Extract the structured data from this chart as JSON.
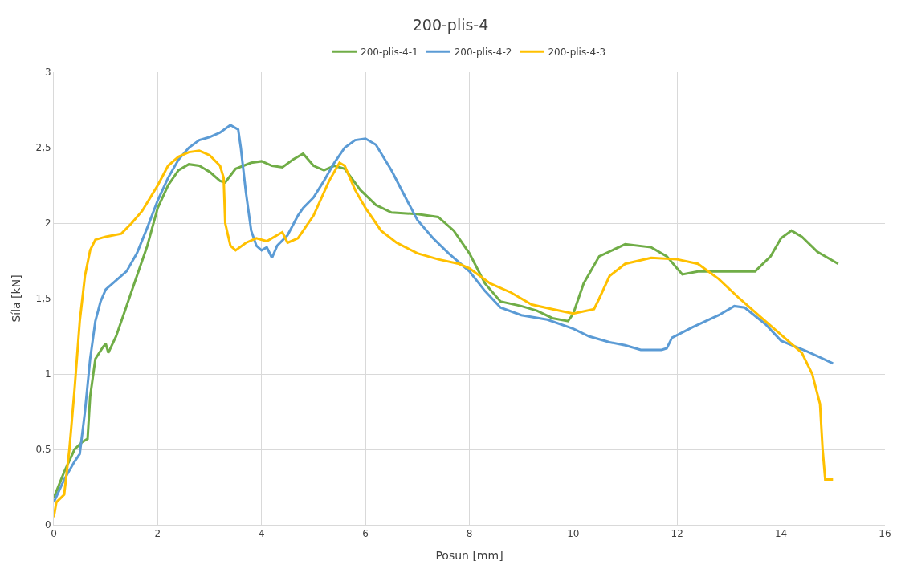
{
  "chart_data": {
    "type": "line",
    "title": "200-plis-4",
    "xlabel": "Posun [mm]",
    "ylabel": "Síla [kN]",
    "xlim": [
      0,
      16
    ],
    "xticks": [
      0,
      2,
      4,
      6,
      8,
      10,
      12,
      14,
      16
    ],
    "ylim": [
      0,
      3
    ],
    "yticks": [
      0,
      {
        "value": 0.5,
        "label": "0,5"
      },
      1,
      {
        "value": 1.5,
        "label": "1,5"
      },
      2,
      {
        "value": 2.5,
        "label": "2,5"
      },
      3
    ],
    "grid": true,
    "legend": "top",
    "marker": "none",
    "line_style": "solid",
    "series": [
      {
        "name": "200-plis-4-1",
        "color": "#70ad47",
        "x": [
          0,
          0.2,
          0.4,
          0.55,
          0.65,
          0.7,
          0.8,
          0.95,
          1.0,
          1.05,
          1.2,
          1.4,
          1.6,
          1.8,
          2.0,
          2.2,
          2.4,
          2.6,
          2.8,
          3.0,
          3.2,
          3.3,
          3.5,
          3.8,
          4.0,
          4.2,
          4.4,
          4.6,
          4.8,
          5.0,
          5.2,
          5.4,
          5.6,
          5.9,
          6.2,
          6.5,
          7.0,
          7.4,
          7.7,
          8.0,
          8.3,
          8.6,
          9.0,
          9.3,
          9.6,
          9.9,
          10.0,
          10.2,
          10.5,
          11.0,
          11.5,
          11.8,
          12.0,
          12.1,
          12.4,
          13.0,
          13.5,
          13.8,
          14.0,
          14.2,
          14.4,
          14.7,
          15.1
        ],
        "values": [
          0.18,
          0.35,
          0.5,
          0.55,
          0.57,
          0.85,
          1.1,
          1.18,
          1.2,
          1.14,
          1.25,
          1.45,
          1.65,
          1.85,
          2.1,
          2.25,
          2.35,
          2.39,
          2.38,
          2.34,
          2.28,
          2.27,
          2.36,
          2.4,
          2.41,
          2.38,
          2.37,
          2.42,
          2.46,
          2.38,
          2.35,
          2.38,
          2.36,
          2.22,
          2.12,
          2.07,
          2.06,
          2.04,
          1.95,
          1.8,
          1.6,
          1.48,
          1.45,
          1.42,
          1.37,
          1.35,
          1.4,
          1.6,
          1.78,
          1.86,
          1.84,
          1.78,
          1.7,
          1.66,
          1.68,
          1.68,
          1.68,
          1.78,
          1.9,
          1.95,
          1.91,
          1.81,
          1.73
        ]
      },
      {
        "name": "200-plis-4-2",
        "color": "#5b9bd5",
        "x": [
          0,
          0.2,
          0.4,
          0.5,
          0.6,
          0.7,
          0.8,
          0.9,
          1.0,
          1.2,
          1.4,
          1.6,
          1.8,
          2.0,
          2.2,
          2.4,
          2.6,
          2.8,
          3.0,
          3.2,
          3.4,
          3.55,
          3.6,
          3.7,
          3.8,
          3.9,
          4.0,
          4.1,
          4.2,
          4.3,
          4.5,
          4.7,
          4.8,
          5.0,
          5.2,
          5.4,
          5.6,
          5.8,
          6.0,
          6.2,
          6.5,
          6.8,
          7.0,
          7.3,
          7.6,
          8.0,
          8.3,
          8.6,
          9.0,
          9.5,
          10.0,
          10.3,
          10.7,
          11.0,
          11.3,
          11.7,
          11.8,
          11.9,
          12.3,
          12.8,
          13.1,
          13.3,
          13.7,
          14.0,
          14.5,
          15.0
        ],
        "values": [
          0.15,
          0.3,
          0.42,
          0.47,
          0.75,
          1.1,
          1.35,
          1.48,
          1.56,
          1.62,
          1.68,
          1.8,
          1.97,
          2.15,
          2.3,
          2.42,
          2.5,
          2.55,
          2.57,
          2.6,
          2.65,
          2.62,
          2.5,
          2.2,
          1.95,
          1.85,
          1.82,
          1.84,
          1.77,
          1.85,
          1.92,
          2.05,
          2.1,
          2.17,
          2.28,
          2.4,
          2.5,
          2.55,
          2.56,
          2.52,
          2.35,
          2.15,
          2.02,
          1.9,
          1.8,
          1.68,
          1.55,
          1.44,
          1.39,
          1.36,
          1.3,
          1.25,
          1.21,
          1.19,
          1.16,
          1.16,
          1.17,
          1.24,
          1.31,
          1.39,
          1.45,
          1.44,
          1.33,
          1.22,
          1.15,
          1.07
        ]
      },
      {
        "name": "200-plis-4-3",
        "color": "#ffc000",
        "x": [
          0,
          0.05,
          0.2,
          0.3,
          0.4,
          0.5,
          0.6,
          0.7,
          0.8,
          1.0,
          1.3,
          1.5,
          1.7,
          2.0,
          2.2,
          2.4,
          2.6,
          2.8,
          3.0,
          3.2,
          3.27,
          3.3,
          3.4,
          3.5,
          3.7,
          3.9,
          4.1,
          4.3,
          4.4,
          4.5,
          4.7,
          5.0,
          5.3,
          5.5,
          5.6,
          5.8,
          6.0,
          6.3,
          6.6,
          7.0,
          7.4,
          7.8,
          8.0,
          8.4,
          8.8,
          9.2,
          9.6,
          10.0,
          10.4,
          10.5,
          10.7,
          11.0,
          11.5,
          12.0,
          12.4,
          12.8,
          13.2,
          13.6,
          14.0,
          14.4,
          14.6,
          14.75,
          14.8,
          14.85,
          15.0
        ],
        "values": [
          0.05,
          0.15,
          0.2,
          0.5,
          0.9,
          1.35,
          1.65,
          1.82,
          1.89,
          1.91,
          1.93,
          2.0,
          2.08,
          2.25,
          2.38,
          2.44,
          2.47,
          2.48,
          2.45,
          2.38,
          2.3,
          2.0,
          1.85,
          1.82,
          1.87,
          1.9,
          1.88,
          1.92,
          1.94,
          1.87,
          1.9,
          2.05,
          2.28,
          2.4,
          2.38,
          2.22,
          2.1,
          1.95,
          1.87,
          1.8,
          1.76,
          1.73,
          1.7,
          1.6,
          1.54,
          1.46,
          1.43,
          1.4,
          1.43,
          1.5,
          1.65,
          1.73,
          1.77,
          1.76,
          1.73,
          1.63,
          1.5,
          1.38,
          1.26,
          1.14,
          1.0,
          0.8,
          0.5,
          0.3,
          0.3
        ]
      }
    ]
  }
}
